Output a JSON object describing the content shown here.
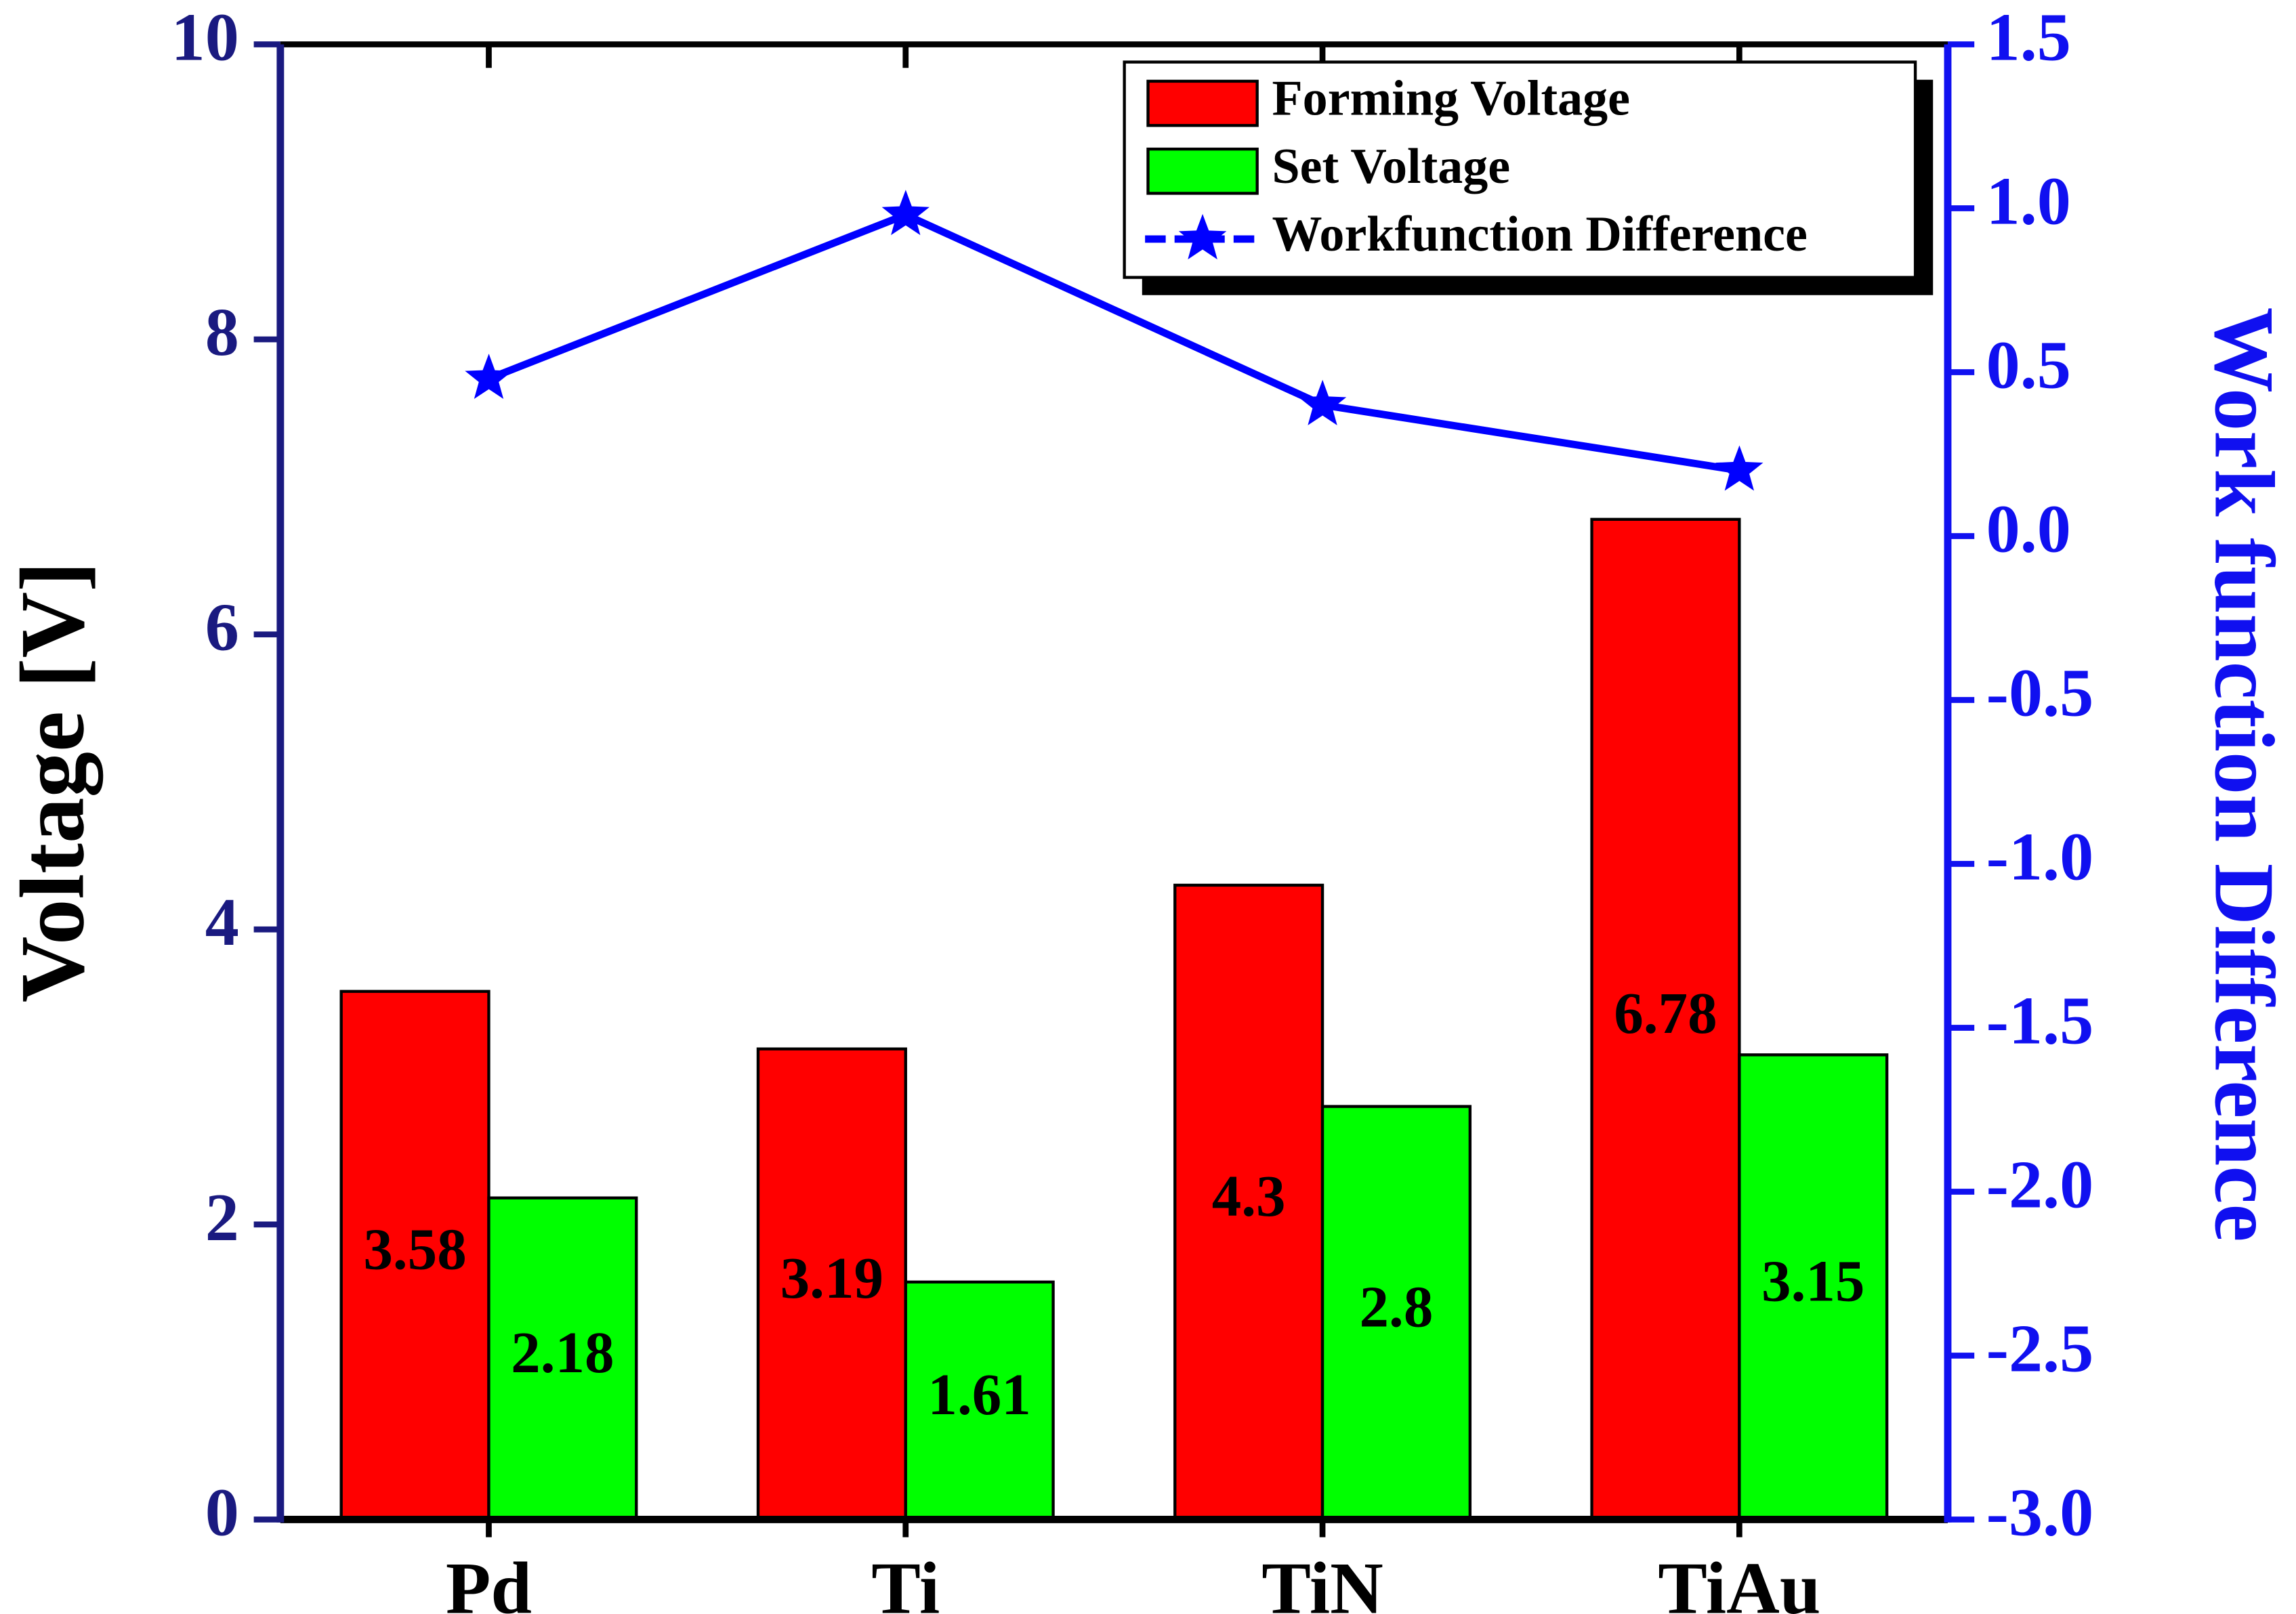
{
  "chart_data": {
    "type": "bar",
    "categories": [
      "Pd",
      "Ti",
      "TiN",
      "TiAu"
    ],
    "series": [
      {
        "name": "Forming Voltage",
        "color": "#ff0000",
        "values": [
          3.58,
          3.19,
          4.3,
          6.78
        ]
      },
      {
        "name": "Set Voltage",
        "color": "#00ff00",
        "values": [
          2.18,
          1.61,
          2.8,
          3.15
        ]
      },
      {
        "name": "Workfunction Difference",
        "type": "line",
        "marker": "star",
        "axis": "y2",
        "color": "#0000ff",
        "values": [
          0.48,
          0.98,
          0.4,
          0.2
        ]
      }
    ],
    "ylabel": "Voltage [V]",
    "y2label": "Work function Difference",
    "ylim": [
      0,
      10
    ],
    "yticks": [
      0,
      2,
      4,
      6,
      8,
      10
    ],
    "y2lim": [
      -3,
      1.5
    ],
    "y2ticks": [
      {
        "value": -3,
        "label": "-3.0"
      },
      -2.5,
      {
        "value": -2,
        "label": "-2.0"
      },
      -1.5,
      {
        "value": -1,
        "label": "-1.0"
      },
      -0.5,
      {
        "value": 0,
        "label": "0.0"
      },
      0.5,
      {
        "value": 1,
        "label": "1.0"
      },
      1.5
    ],
    "legend": "upper right"
  }
}
